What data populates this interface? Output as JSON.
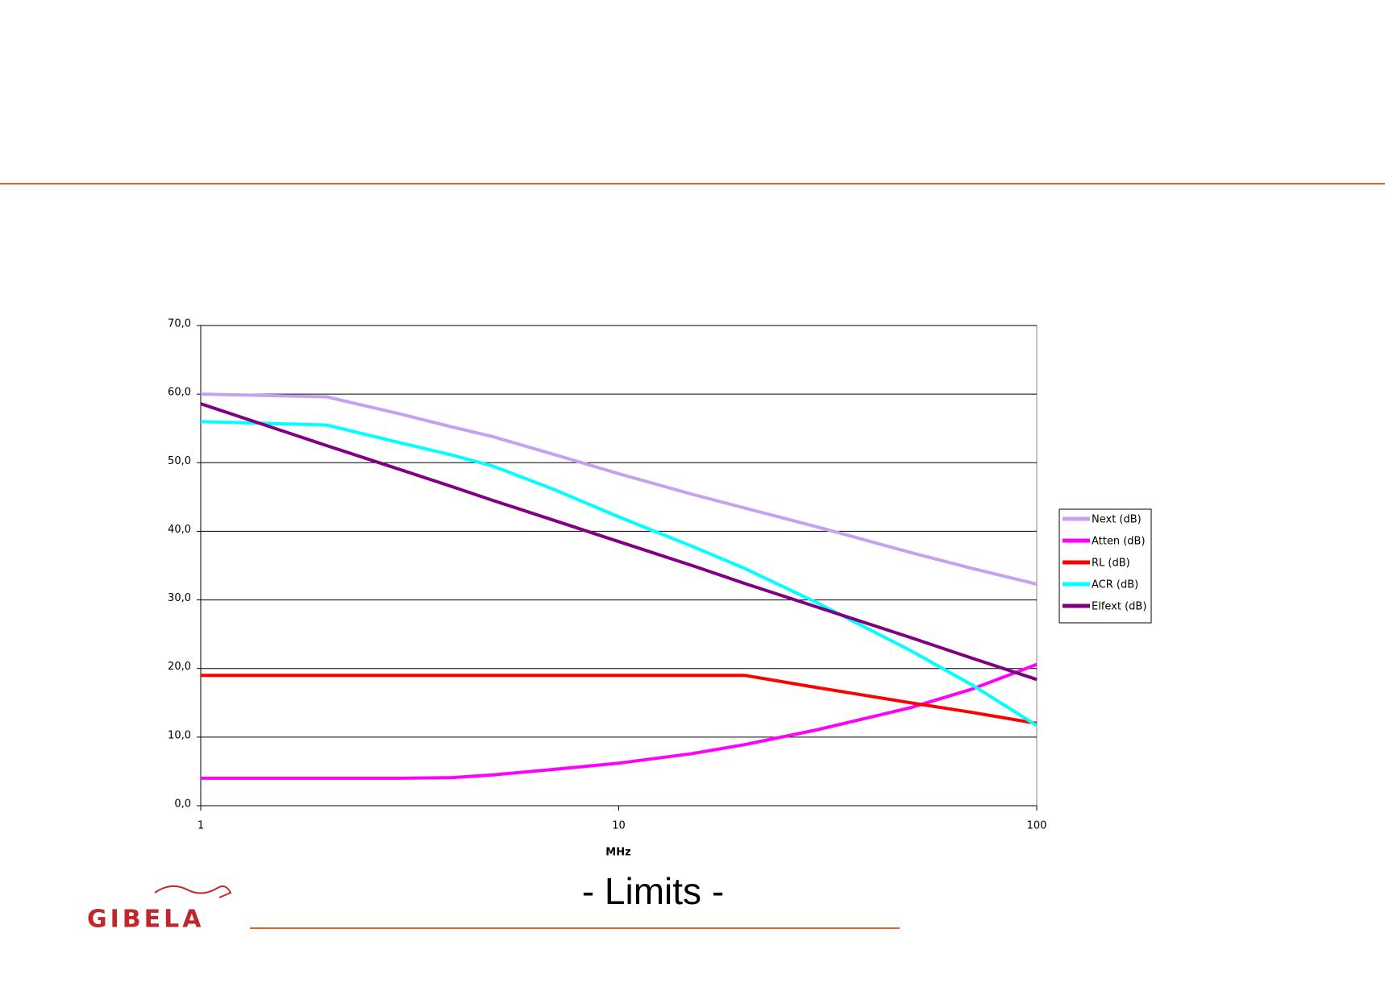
{
  "chart_data": {
    "type": "line",
    "title": "- Limits -",
    "xlabel": "MHz",
    "xscale": "log",
    "xlim": [
      1,
      100
    ],
    "xticks": [
      1,
      10,
      100
    ],
    "ylim": [
      0,
      70
    ],
    "yticks": [
      {
        "value": 0,
        "label": "0,0"
      },
      {
        "value": 10,
        "label": "10,0"
      },
      {
        "value": 20,
        "label": "20,0"
      },
      {
        "value": 30,
        "label": "30,0"
      },
      {
        "value": 40,
        "label": "40,0"
      },
      {
        "value": 50,
        "label": "50,0"
      },
      {
        "value": 60,
        "label": "60,0"
      },
      {
        "value": 70,
        "label": "70,0"
      }
    ],
    "grid": true,
    "legend": "right",
    "x": [
      1,
      2,
      3,
      4,
      5,
      7,
      10,
      15,
      20,
      30,
      50,
      70,
      100
    ],
    "series": [
      {
        "name": "Next (dB)",
        "color": "#c8a0f0",
        "values": [
          60,
          59.6,
          57.1,
          55.2,
          53.8,
          51.2,
          48.4,
          45.4,
          43.4,
          40.6,
          36.9,
          34.6,
          32.3
        ]
      },
      {
        "name": "Atten (dB)",
        "color": "#ff00ff",
        "values": [
          4,
          4,
          4,
          4.1,
          4.5,
          5.3,
          6.2,
          7.6,
          8.9,
          11.1,
          14.3,
          17.0,
          20.6
        ]
      },
      {
        "name": "RL (dB)",
        "color": "#ff0000",
        "values": [
          19,
          19,
          19,
          19,
          19,
          19,
          19,
          19,
          19,
          17.2,
          15.0,
          13.6,
          12
        ]
      },
      {
        "name": "ACR (dB)",
        "color": "#00ffff",
        "values": [
          56,
          55.5,
          52.9,
          51.1,
          49.5,
          46.1,
          42.1,
          37.8,
          34.6,
          29.5,
          22.6,
          17.6,
          11.7
        ]
      },
      {
        "name": "Elfext (dB)",
        "color": "#800080",
        "values": [
          58.6,
          52.5,
          49.0,
          46.5,
          44.5,
          41.6,
          38.5,
          35.0,
          32.4,
          28.9,
          24.5,
          21.5,
          18.4
        ]
      }
    ]
  },
  "logo": "GIBELA"
}
